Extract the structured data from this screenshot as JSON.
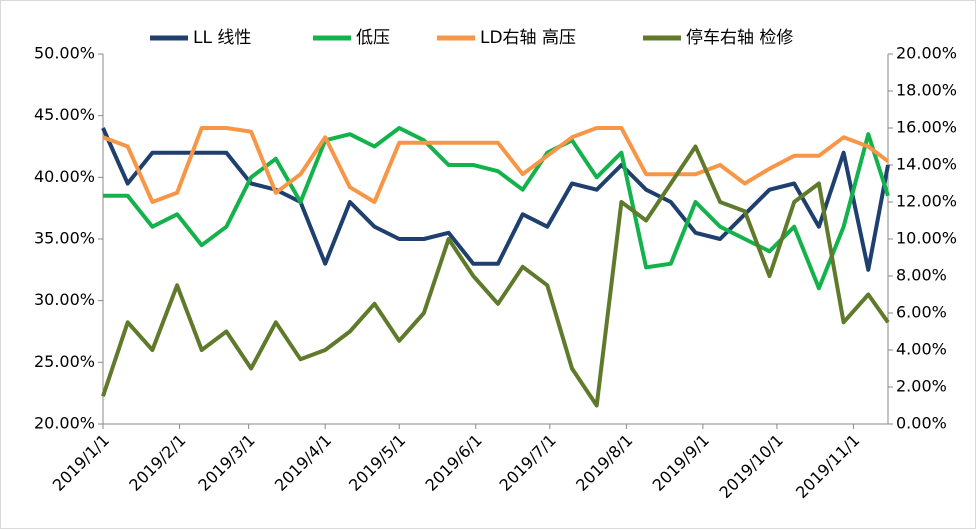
{
  "chart_data": {
    "type": "line",
    "x": [
      "2019/1/1",
      "2019/1/11",
      "2019/1/21",
      "2019/1/31",
      "2019/2/10",
      "2019/2/20",
      "2019/3/2",
      "2019/3/12",
      "2019/3/22",
      "2019/4/1",
      "2019/4/11",
      "2019/4/21",
      "2019/5/1",
      "2019/5/11",
      "2019/5/21",
      "2019/5/31",
      "2019/6/10",
      "2019/6/20",
      "2019/6/30",
      "2019/7/10",
      "2019/7/20",
      "2019/7/30",
      "2019/8/9",
      "2019/8/19",
      "2019/8/29",
      "2019/9/8",
      "2019/9/18",
      "2019/9/28",
      "2019/10/8",
      "2019/10/18",
      "2019/10/28",
      "2019/11/7",
      "2019/11/15"
    ],
    "xlim": [
      "2019/1/1",
      "2019/11/15"
    ],
    "xticks": [
      "2019/1/1",
      "2019/2/1",
      "2019/3/1",
      "2019/4/1",
      "2019/5/1",
      "2019/6/1",
      "2019/7/1",
      "2019/8/1",
      "2019/9/1",
      "2019/10/1",
      "2019/11/1"
    ],
    "ylim": [
      20,
      50
    ],
    "yticks": [
      {
        "value": 20,
        "label": "20.00%"
      },
      {
        "value": 25,
        "label": "25.00%"
      },
      {
        "value": 30,
        "label": "30.00%"
      },
      {
        "value": 35,
        "label": "35.00%"
      },
      {
        "value": 40,
        "label": "40.00%"
      },
      {
        "value": 45,
        "label": "45.00%"
      },
      {
        "value": 50,
        "label": "50.00%"
      }
    ],
    "y2lim": [
      0,
      20
    ],
    "y2ticks": [
      {
        "value": 0,
        "label": "0.00%"
      },
      {
        "value": 2,
        "label": "2.00%"
      },
      {
        "value": 4,
        "label": "4.00%"
      },
      {
        "value": 6,
        "label": "6.00%"
      },
      {
        "value": 8,
        "label": "8.00%"
      },
      {
        "value": 10,
        "label": "10.00%"
      },
      {
        "value": 12,
        "label": "12.00%"
      },
      {
        "value": 14,
        "label": "14.00%"
      },
      {
        "value": 16,
        "label": "16.00%"
      },
      {
        "value": 18,
        "label": "18.00%"
      },
      {
        "value": 20,
        "label": "20.00%"
      }
    ],
    "legend": "top",
    "series": [
      {
        "name": "LL 线性",
        "color": "#1f3f6e",
        "values": [
          44,
          39.5,
          42,
          42,
          42,
          42,
          39.5,
          39,
          38,
          33,
          38,
          36,
          35,
          35,
          35.5,
          33,
          33,
          37,
          36,
          39.5,
          39,
          41,
          39,
          38,
          35.5,
          35,
          37,
          39,
          39.5,
          36,
          42,
          32.5,
          41
        ]
      },
      {
        "name": "低压",
        "color": "#13b24b",
        "values": [
          38.5,
          38.5,
          36,
          37,
          34.5,
          36,
          40,
          41.5,
          38,
          43,
          43.5,
          42.5,
          44,
          43,
          41,
          41,
          40.5,
          39,
          42,
          43,
          40,
          42,
          32.7,
          33,
          38,
          36,
          35,
          34,
          36,
          31,
          36,
          43.5,
          38.5
        ]
      },
      {
        "name": "LD右轴 高压",
        "color": "#f79646",
        "axis": "y2",
        "values": [
          15.5,
          15,
          12,
          12.5,
          16,
          16,
          15.8,
          12.5,
          13.5,
          15.5,
          12.8,
          12,
          15.2,
          15.2,
          15.2,
          15.2,
          15.2,
          13.5,
          14.5,
          15.5,
          16,
          16,
          13.5,
          13.5,
          13.5,
          14,
          13,
          13.8,
          14.5,
          14.5,
          15.5,
          15,
          14.2
        ]
      },
      {
        "name": "停车右轴 检修",
        "color": "#5f7a2a",
        "axis": "y2",
        "values": [
          1.5,
          5.5,
          4,
          7.5,
          4,
          5,
          3,
          5.5,
          3.5,
          4,
          5,
          6.5,
          4.5,
          6,
          10,
          8,
          6.5,
          8.5,
          7.5,
          3,
          1,
          12,
          11,
          13,
          15,
          12,
          11.5,
          8,
          12,
          13,
          5.5,
          7,
          5.5
        ]
      }
    ]
  }
}
